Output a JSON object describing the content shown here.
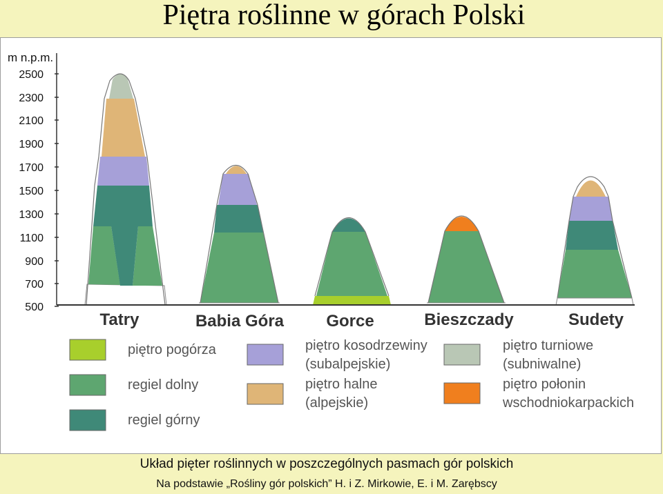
{
  "title": "Piętra roślinne w górach Polski",
  "axis": {
    "unit": "m n.p.m.",
    "ticks": [
      "2500",
      "2300",
      "2100",
      "1900",
      "1700",
      "1500",
      "1300",
      "1100",
      "900",
      "700",
      "500"
    ]
  },
  "ranges": [
    "Tatry",
    "Babia Góra",
    "Gorce",
    "Bieszczady",
    "Sudety"
  ],
  "zones": {
    "pogorze": {
      "label": "piętro pogórza",
      "color": "#a8cf2c"
    },
    "regiel_dolny": {
      "label": "regiel dolny",
      "color": "#5ea670"
    },
    "regiel_gorny": {
      "label": "regiel górny",
      "color": "#3f8978"
    },
    "kosodrzewina": {
      "line1": "piętro kosodrzewiny",
      "line2": "(subalpejskie)",
      "color": "#a6a0d8"
    },
    "halne": {
      "line1": "piętro halne",
      "line2": "(alpejskie)",
      "color": "#dfb577"
    },
    "turniowe": {
      "line1": "piętro turniowe",
      "line2": "(subniwalne)",
      "color": "#b9c7b5"
    },
    "polonin": {
      "line1": "piętro połonin",
      "line2": "wschodniokarpackich",
      "color": "#f07f1e"
    }
  },
  "caption": "Układ pięter roślinnych w poszczególnych pasmach gór polskich",
  "source": "Na podstawie „Rośliny gór polskich” H. i Z. Mirkowie, E. i M. Zarębscy"
}
